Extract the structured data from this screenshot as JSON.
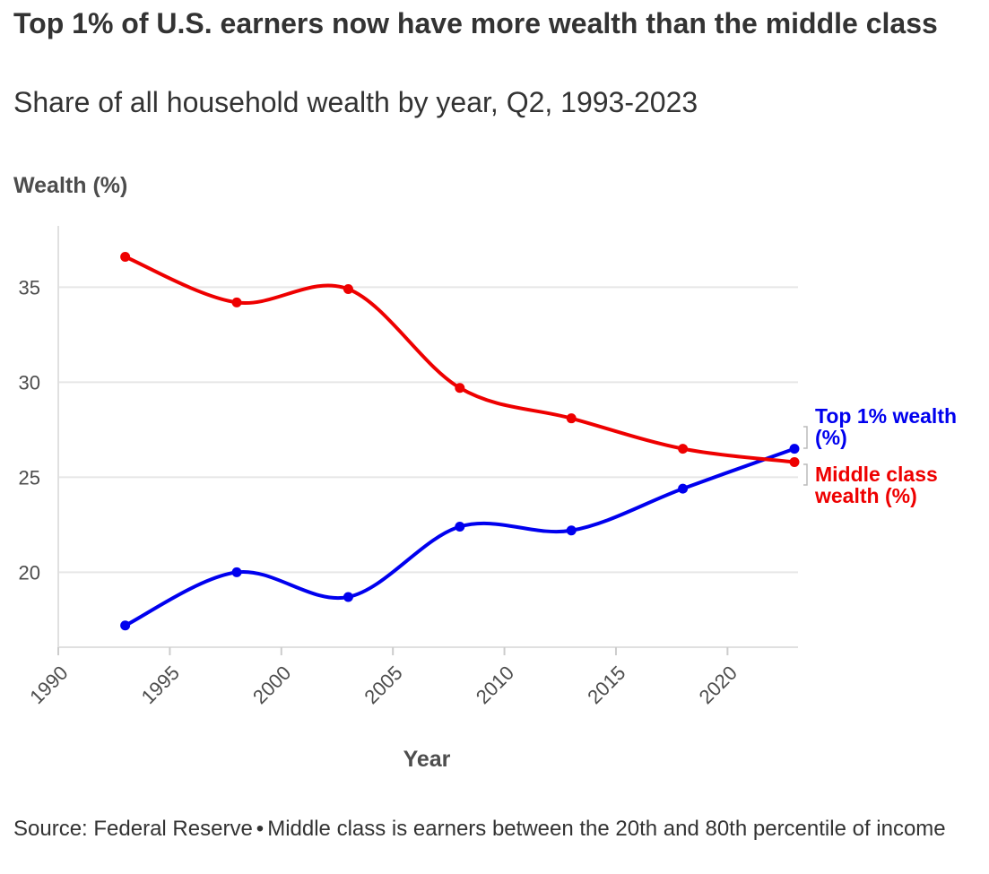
{
  "header": {
    "title": "Top 1% of U.S. earners now have more wealth than the middle class",
    "subtitle": "Share of all household wealth by year, Q2, 1993-2023"
  },
  "footer": {
    "source": "Source: Federal Reserve",
    "separator": "•",
    "note": "Middle class is earners between the 20th and 80th percentile of income"
  },
  "chart_data": {
    "type": "line",
    "title": "Top 1% of U.S. earners now have more wealth than the middle class",
    "subtitle": "Share of all household wealth by year, Q2, 1993-2023",
    "xlabel": "Year",
    "ylabel": "Wealth (%)",
    "xlim": [
      1990,
      2023
    ],
    "ylim": [
      16,
      38
    ],
    "xticks": [
      1990,
      1995,
      2000,
      2005,
      2010,
      2015,
      2020
    ],
    "yticks": [
      20,
      25,
      30,
      35
    ],
    "grid": true,
    "legend": "direct labels at line ends (right)",
    "series": [
      {
        "name": "Top 1% wealth (%)",
        "label_lines": [
          "Top 1% wealth",
          "(%)"
        ],
        "color": "#0000ee",
        "x": [
          1993,
          1998,
          2003,
          2008,
          2013,
          2018,
          2023
        ],
        "y": [
          17.2,
          20.0,
          18.7,
          22.4,
          22.2,
          24.4,
          26.5
        ]
      },
      {
        "name": "Middle class wealth (%)",
        "label_lines": [
          "Middle class",
          "wealth (%)"
        ],
        "color": "#ee0000",
        "x": [
          1993,
          1998,
          2003,
          2008,
          2013,
          2018,
          2023
        ],
        "y": [
          36.6,
          34.2,
          34.9,
          29.7,
          28.1,
          26.5,
          25.8
        ]
      }
    ]
  }
}
